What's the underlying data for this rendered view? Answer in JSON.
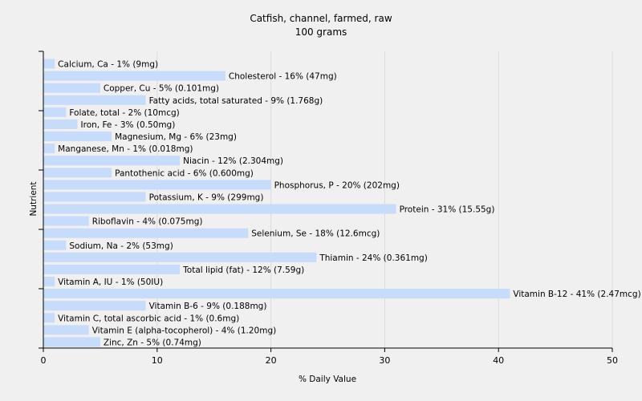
{
  "chart_data": {
    "type": "bar",
    "orientation": "horizontal",
    "title": "Catfish, channel, farmed, raw",
    "subtitle": "100 grams",
    "xlabel": "% Daily Value",
    "ylabel": "Nutrient",
    "xlim": [
      0,
      50
    ],
    "xticks": [
      "0",
      "10",
      "20",
      "30",
      "40",
      "50"
    ],
    "grid": true,
    "bar_color": "#c6dcfa",
    "bars": [
      {
        "name": "Calcium, Ca",
        "value": 1,
        "label": "Calcium, Ca - 1% (9mg)"
      },
      {
        "name": "Cholesterol",
        "value": 16,
        "label": "Cholesterol - 16% (47mg)"
      },
      {
        "name": "Copper, Cu",
        "value": 5,
        "label": "Copper, Cu - 5% (0.101mg)"
      },
      {
        "name": "Fatty acids, total saturated",
        "value": 9,
        "label": "Fatty acids, total saturated - 9% (1.768g)"
      },
      {
        "name": "Folate, total",
        "value": 2,
        "label": "Folate, total - 2% (10mcg)"
      },
      {
        "name": "Iron, Fe",
        "value": 3,
        "label": "Iron, Fe - 3% (0.50mg)"
      },
      {
        "name": "Magnesium, Mg",
        "value": 6,
        "label": "Magnesium, Mg - 6% (23mg)"
      },
      {
        "name": "Manganese, Mn",
        "value": 1,
        "label": "Manganese, Mn - 1% (0.018mg)"
      },
      {
        "name": "Niacin",
        "value": 12,
        "label": "Niacin - 12% (2.304mg)"
      },
      {
        "name": "Pantothenic acid",
        "value": 6,
        "label": "Pantothenic acid - 6% (0.600mg)"
      },
      {
        "name": "Phosphorus, P",
        "value": 20,
        "label": "Phosphorus, P - 20% (202mg)"
      },
      {
        "name": "Potassium, K",
        "value": 9,
        "label": "Potassium, K - 9% (299mg)"
      },
      {
        "name": "Protein",
        "value": 31,
        "label": "Protein - 31% (15.55g)"
      },
      {
        "name": "Riboflavin",
        "value": 4,
        "label": "Riboflavin - 4% (0.075mg)"
      },
      {
        "name": "Selenium, Se",
        "value": 18,
        "label": "Selenium, Se - 18% (12.6mcg)"
      },
      {
        "name": "Sodium, Na",
        "value": 2,
        "label": "Sodium, Na - 2% (53mg)"
      },
      {
        "name": "Thiamin",
        "value": 24,
        "label": "Thiamin - 24% (0.361mg)"
      },
      {
        "name": "Total lipid (fat)",
        "value": 12,
        "label": "Total lipid (fat) - 12% (7.59g)"
      },
      {
        "name": "Vitamin A, IU",
        "value": 1,
        "label": "Vitamin A, IU - 1% (50IU)"
      },
      {
        "name": "Vitamin B-12",
        "value": 41,
        "label": "Vitamin B-12 - 41% (2.47mcg)"
      },
      {
        "name": "Vitamin B-6",
        "value": 9,
        "label": "Vitamin B-6 - 9% (0.188mg)"
      },
      {
        "name": "Vitamin C, total ascorbic acid",
        "value": 1,
        "label": "Vitamin C, total ascorbic acid - 1% (0.6mg)"
      },
      {
        "name": "Vitamin E (alpha-tocopherol)",
        "value": 4,
        "label": "Vitamin E (alpha-tocopherol) - 4% (1.20mg)"
      },
      {
        "name": "Zinc, Zn",
        "value": 5,
        "label": "Zinc, Zn - 5% (0.74mg)"
      }
    ]
  }
}
